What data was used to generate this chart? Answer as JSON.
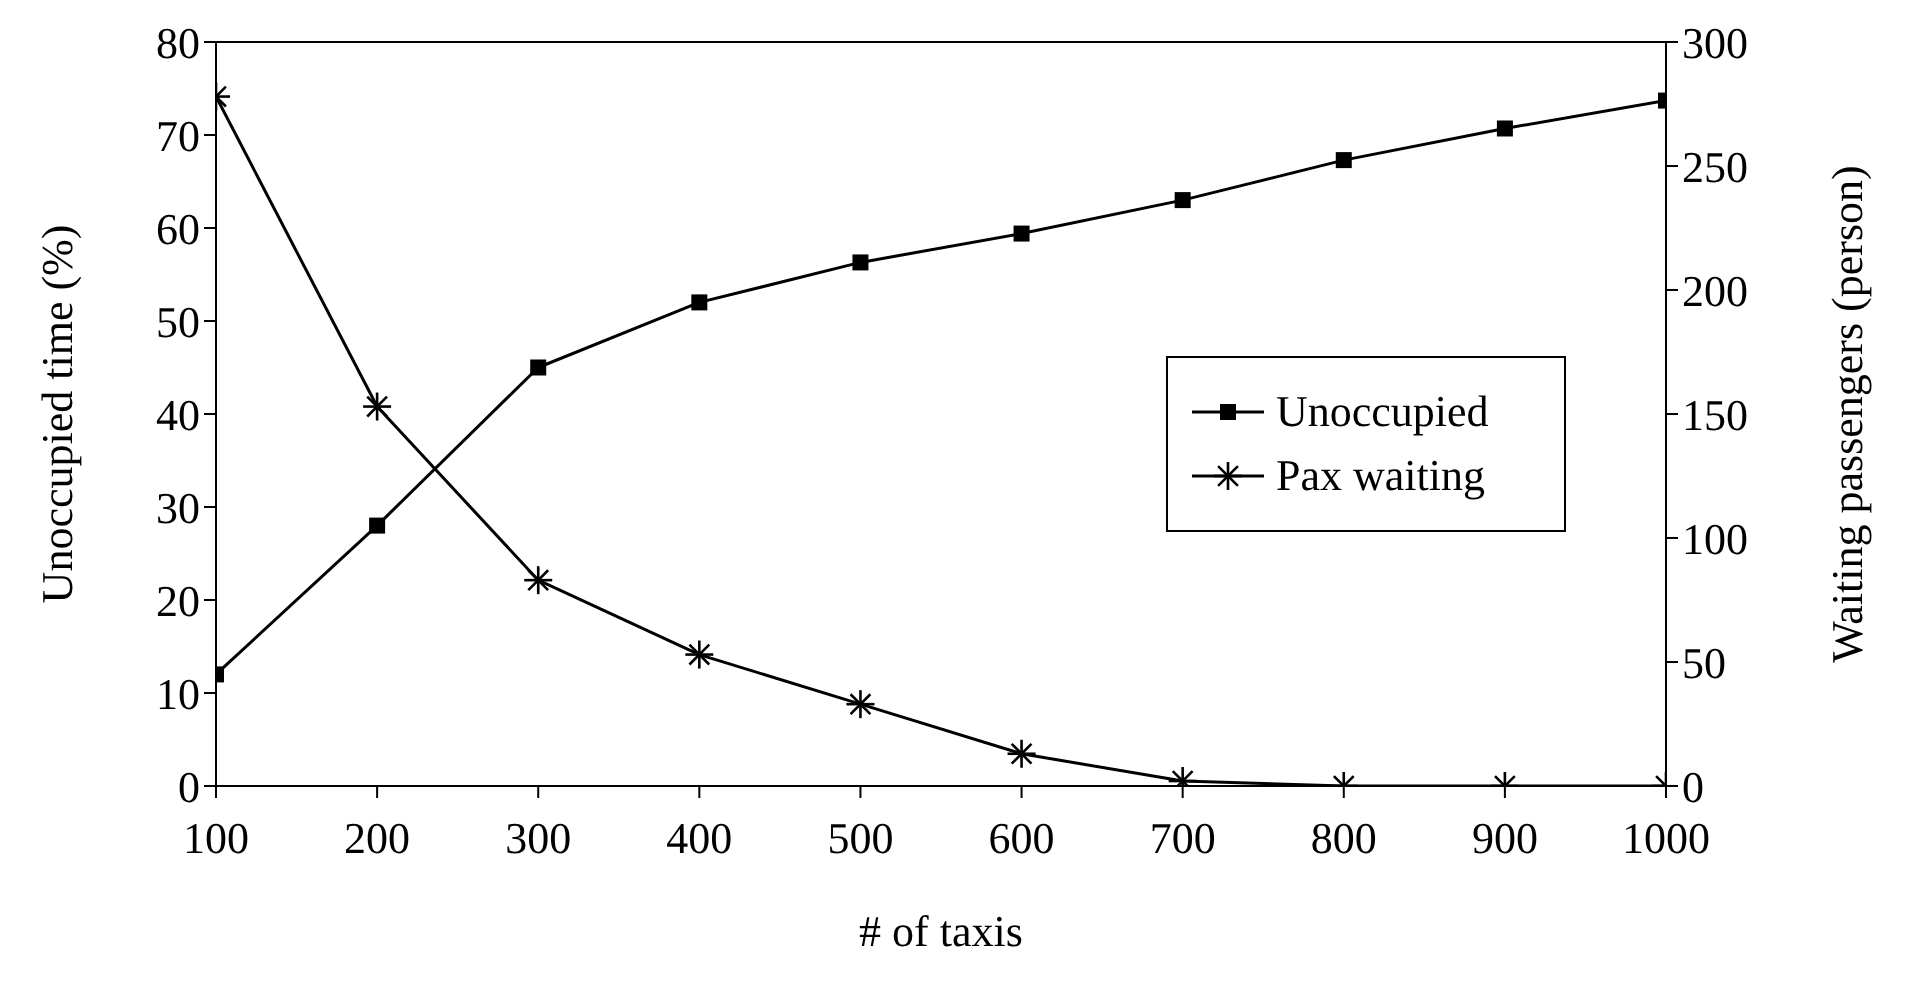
{
  "chart_data": {
    "type": "line",
    "xlabel": "# of taxis",
    "ylabel": "Unoccupied time (%)",
    "y2label": "Waiting passengers (person)",
    "x": [
      100,
      200,
      300,
      400,
      500,
      600,
      700,
      800,
      900,
      1000
    ],
    "series": [
      {
        "name": "Unoccupied",
        "color": "#000000",
        "marker": "square",
        "values": [
          12,
          28,
          45,
          52,
          56.3,
          59.4,
          63,
          67.3,
          70.7,
          73.7
        ]
      },
      {
        "name": "Pax waiting",
        "color": "#000000",
        "marker": "cross",
        "axis": "y2",
        "values": [
          278,
          153,
          83,
          53,
          33,
          13,
          2,
          0,
          0,
          0
        ]
      }
    ],
    "xlim": [
      100,
      1000
    ],
    "xticks": [
      100,
      200,
      300,
      400,
      500,
      600,
      700,
      800,
      900,
      1000
    ],
    "ylim": [
      0,
      80
    ],
    "yticks": [
      0,
      10,
      20,
      30,
      40,
      50,
      60,
      70,
      80
    ],
    "y2lim": [
      0,
      300
    ],
    "y2ticks": [
      0,
      50,
      100,
      150,
      200,
      250,
      300
    ],
    "grid": false,
    "legend": "right",
    "line_style": "solid"
  }
}
